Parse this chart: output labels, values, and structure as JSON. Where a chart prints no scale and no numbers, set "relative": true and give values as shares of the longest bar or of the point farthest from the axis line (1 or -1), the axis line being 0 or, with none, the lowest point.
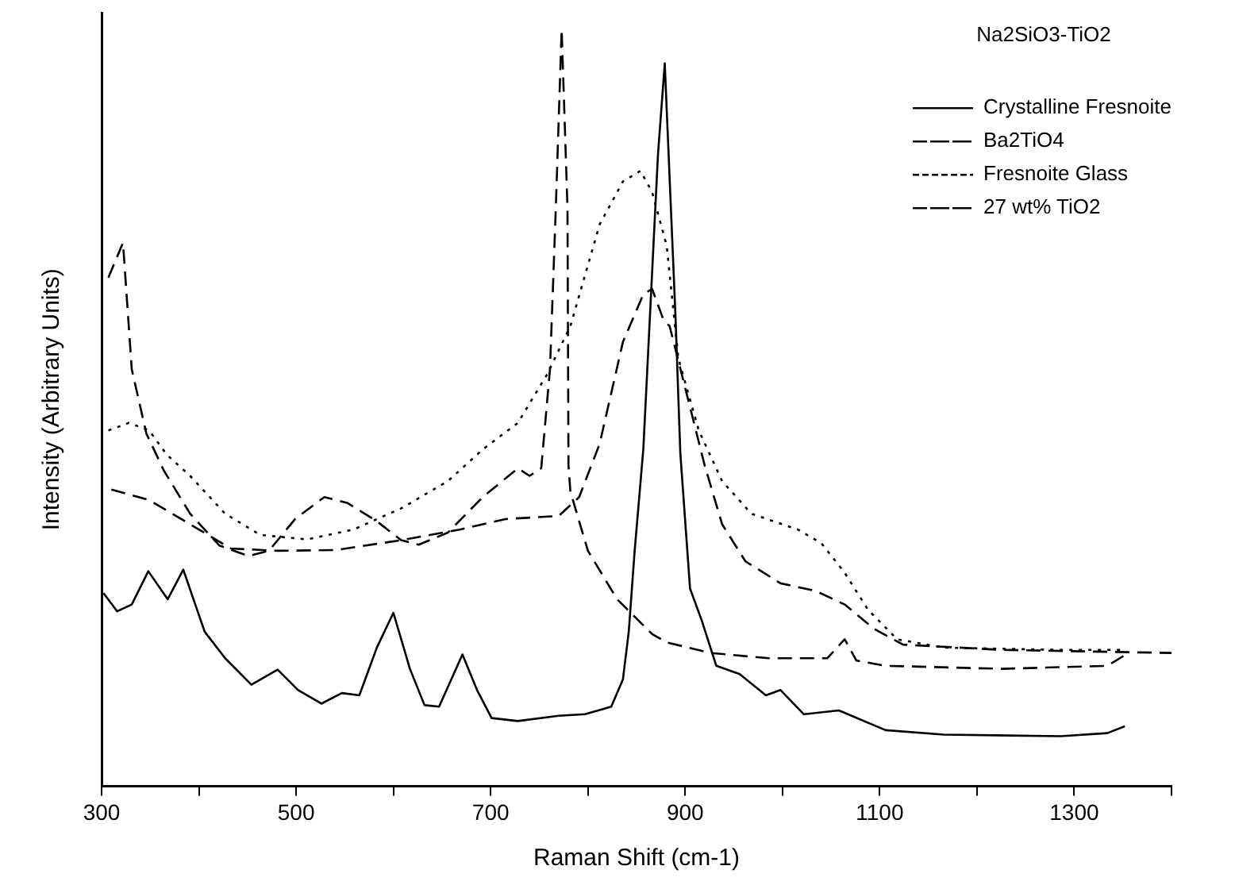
{
  "chart_data": {
    "type": "line",
    "relative": true,
    "xlabel": "Raman Shift (cm-1)",
    "ylabel": "Intensity (Arbitrary Units)",
    "legend_title": "Na2SiO3-TiO2",
    "legend": "top right",
    "grid": false,
    "marker": "none",
    "xlim": [
      300,
      1400
    ],
    "xticks": [
      300,
      {
        "value": 400,
        "label": null
      },
      500,
      {
        "value": 600,
        "label": null
      },
      700,
      {
        "value": 800,
        "label": null
      },
      900,
      {
        "value": 1000,
        "label": null
      },
      1100,
      {
        "value": 1200,
        "label": null
      },
      1300,
      {
        "value": 1400,
        "label": null
      }
    ],
    "series": [
      {
        "name": "Crystalline Fresnoite",
        "color": "#000000",
        "line_style": "solid",
        "x": [
          302,
          316,
          331,
          348,
          368,
          384,
          406,
          427,
          454,
          481,
          502,
          526,
          547,
          565,
          583,
          600,
          617,
          632,
          647,
          671,
          686,
          701,
          728,
          770,
          797,
          824,
          836,
          842,
          848,
          857,
          872,
          879,
          890,
          895,
          905,
          917,
          932,
          956,
          983,
          998,
          1022,
          1058,
          1106,
          1166,
          1286,
          1334,
          1352
        ],
        "values": [
          0.255,
          0.231,
          0.24,
          0.284,
          0.247,
          0.286,
          0.204,
          0.169,
          0.134,
          0.154,
          0.127,
          0.109,
          0.123,
          0.12,
          0.183,
          0.229,
          0.155,
          0.107,
          0.105,
          0.174,
          0.127,
          0.09,
          0.086,
          0.093,
          0.095,
          0.105,
          0.141,
          0.204,
          0.31,
          0.446,
          0.834,
          0.955,
          0.622,
          0.44,
          0.261,
          0.219,
          0.159,
          0.148,
          0.12,
          0.127,
          0.095,
          0.1,
          0.074,
          0.068,
          0.066,
          0.07,
          0.079
        ]
      },
      {
        "name": "Ba2TiO4",
        "color": "#000000",
        "line_style": "dashed",
        "x": [
          307,
          322,
          331,
          346,
          364,
          391,
          421,
          451,
          472,
          499,
          529,
          553,
          583,
          608,
          626,
          656,
          692,
          728,
          740,
          752,
          761,
          767,
          773,
          779,
          780,
          782,
          800,
          830,
          866,
          881,
          926,
          986,
          1046,
          1064,
          1076,
          1106,
          1226,
          1334,
          1352
        ],
        "values": [
          0.672,
          0.718,
          0.551,
          0.466,
          0.417,
          0.36,
          0.318,
          0.304,
          0.311,
          0.353,
          0.382,
          0.374,
          0.35,
          0.325,
          0.319,
          0.335,
          0.382,
          0.42,
          0.41,
          0.42,
          0.551,
          0.764,
          1,
          0.764,
          0.424,
          0.389,
          0.311,
          0.247,
          0.201,
          0.19,
          0.176,
          0.169,
          0.169,
          0.194,
          0.166,
          0.159,
          0.155,
          0.159,
          0.173
        ]
      },
      {
        "name": "Fresnoite Glass",
        "color": "#000000",
        "line_style": "dotted",
        "x": [
          307,
          328,
          349,
          367,
          391,
          427,
          463,
          511,
          559,
          608,
          656,
          692,
          728,
          758,
          782,
          812,
          836,
          854,
          866,
          881,
          893,
          914,
          938,
          968,
          1016,
          1040,
          1064,
          1088,
          1118,
          1166,
          1286,
          1352
        ],
        "values": [
          0.47,
          0.48,
          0.47,
          0.438,
          0.41,
          0.36,
          0.332,
          0.326,
          0.339,
          0.367,
          0.403,
          0.445,
          0.48,
          0.544,
          0.608,
          0.742,
          0.799,
          0.813,
          0.785,
          0.714,
          0.565,
          0.47,
          0.403,
          0.36,
          0.339,
          0.321,
          0.282,
          0.233,
          0.194,
          0.183,
          0.18,
          0.18
        ]
      },
      {
        "name": "27 wt% TiO2",
        "color": "#000000",
        "line_style": "dashed",
        "x": [
          310,
          349,
          391,
          433,
          481,
          541,
          608,
          668,
          716,
          770,
          791,
          812,
          836,
          857,
          866,
          878,
          884,
          902,
          920,
          938,
          962,
          998,
          1034,
          1064,
          1094,
          1124,
          1226,
          1400
        ],
        "values": [
          0.392,
          0.378,
          0.346,
          0.314,
          0.311,
          0.312,
          0.325,
          0.339,
          0.353,
          0.357,
          0.382,
          0.452,
          0.587,
          0.65,
          0.657,
          0.615,
          0.608,
          0.516,
          0.424,
          0.346,
          0.297,
          0.268,
          0.258,
          0.24,
          0.208,
          0.187,
          0.18,
          0.176
        ]
      }
    ]
  }
}
